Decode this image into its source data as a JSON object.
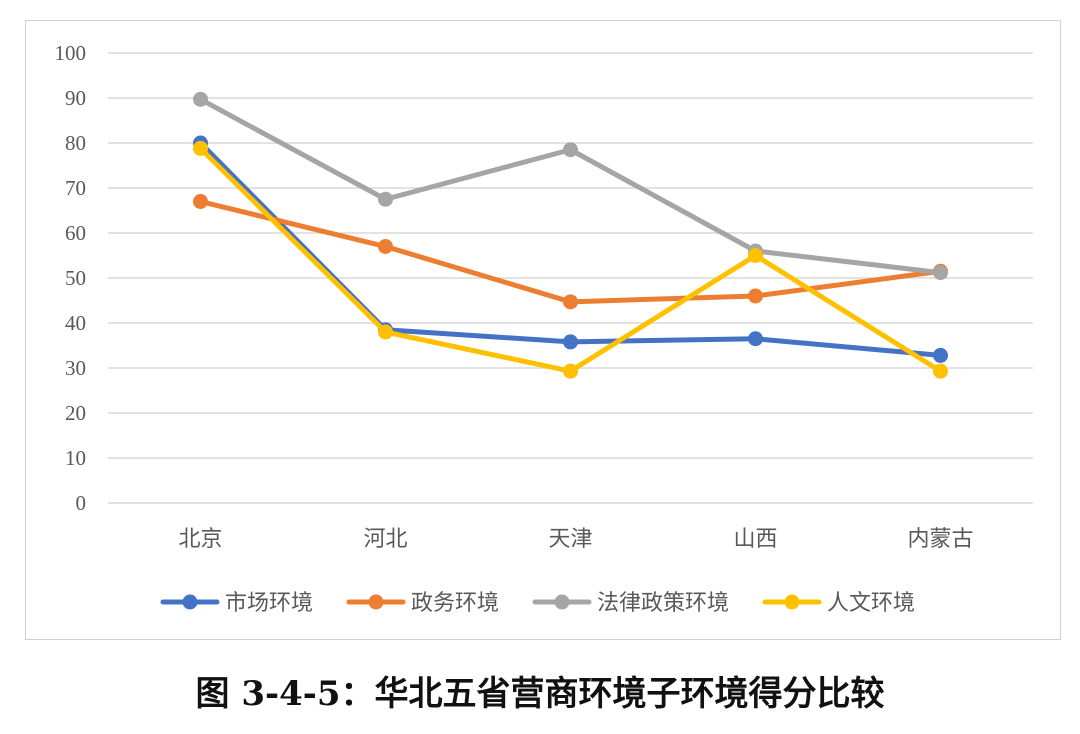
{
  "caption": "图 3-4-5：华北五省营商环境子环境得分比较",
  "chart_data": {
    "type": "line",
    "title": "",
    "xlabel": "",
    "ylabel": "",
    "ylim": [
      0,
      100
    ],
    "yticks": [
      0,
      10,
      20,
      30,
      40,
      50,
      60,
      70,
      80,
      90,
      100
    ],
    "categories": [
      "北京",
      "河北",
      "天津",
      "山西",
      "内蒙古"
    ],
    "grid": true,
    "legend_position": "bottom",
    "series": [
      {
        "name": "市场环境",
        "color": "#4472C4",
        "values": [
          80,
          38.5,
          35.8,
          36.5,
          32.8
        ]
      },
      {
        "name": "政务环境",
        "color": "#ED7D31",
        "values": [
          67,
          57,
          44.7,
          46,
          51.5
        ]
      },
      {
        "name": "法律政策环境",
        "color": "#A5A5A5",
        "values": [
          89.7,
          67.5,
          78.5,
          56,
          51.2
        ]
      },
      {
        "name": "人文环境",
        "color": "#FFC000",
        "values": [
          78.8,
          38,
          29.3,
          55,
          29.3
        ]
      }
    ]
  }
}
